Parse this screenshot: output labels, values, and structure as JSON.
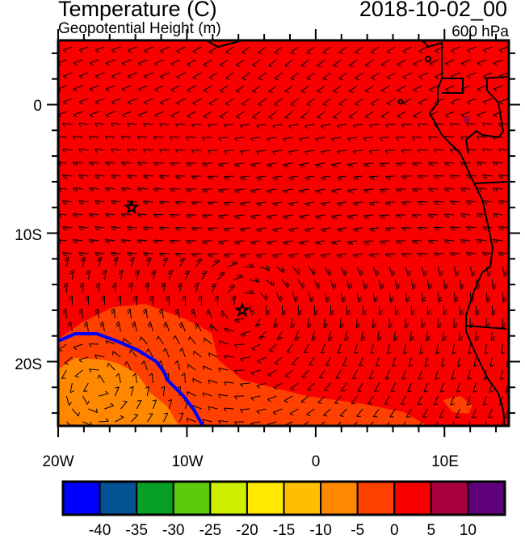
{
  "header": {
    "title": "Temperature (C)",
    "subtitle": "Geopotential Height (m)",
    "datetime": "2018-10-02_00",
    "level": "600 hPa"
  },
  "map": {
    "lat_labels": [
      "0",
      "10S",
      "20S"
    ],
    "lon_labels": [
      "20W",
      "10W",
      "0",
      "10E"
    ],
    "lon_range": [
      -20,
      15
    ],
    "lat_range": [
      -25,
      5
    ],
    "markers": [
      {
        "name": "star",
        "lon": -14.3,
        "lat": -8.0
      },
      {
        "name": "star",
        "lon": -5.7,
        "lat": -16.0
      }
    ],
    "contour_color": "#0000ff",
    "fill_colors": {
      "0_to_5": "#f80000",
      "-5_to_0": "#ff4000",
      "-10_to_-5": "#ff8800",
      "5_to_10": "#a8003c"
    }
  },
  "colorbar": {
    "colors": [
      "#0000ff",
      "#045193",
      "#069f26",
      "#5dcb0b",
      "#cef000",
      "#ffe900",
      "#ffbf00",
      "#ff8800",
      "#ff4000",
      "#f80000",
      "#a8003c",
      "#5e007a"
    ],
    "labels": [
      "-40",
      "-35",
      "-30",
      "-25",
      "-20",
      "-15",
      "-10",
      "-5",
      "0",
      "5",
      "10"
    ]
  }
}
